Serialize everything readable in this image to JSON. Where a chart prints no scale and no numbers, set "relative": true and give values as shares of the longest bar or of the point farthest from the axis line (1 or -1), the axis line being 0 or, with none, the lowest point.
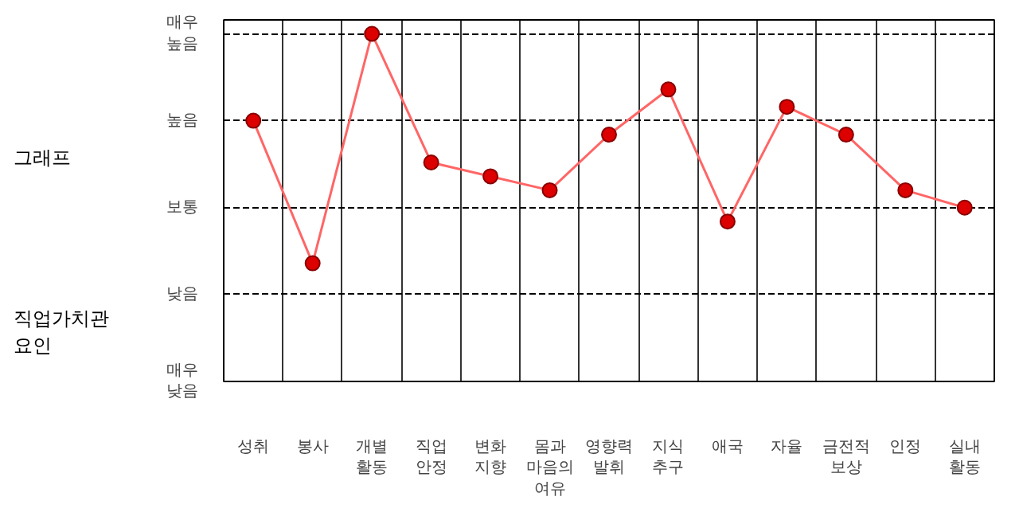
{
  "chart_data": {
    "type": "line",
    "relative": true,
    "categories": [
      "성취",
      "봉사",
      "개별 활동",
      "직업 안정",
      "변화 지향",
      "몸과 마음의 여유",
      "영향력 발휘",
      "지식 추구",
      "애국",
      "자율",
      "금전적 보상",
      "인정",
      "실내 활동"
    ],
    "series": [
      {
        "color": "#ff6666",
        "values": [
          0.75,
          0.34,
          1.0,
          0.63,
          0.59,
          0.55,
          0.71,
          0.84,
          0.46,
          0.79,
          0.71,
          0.55,
          0.5
        ]
      }
    ],
    "annotations": [
      "그래프",
      "직업가치관 요인",
      "매우 낮음",
      "낮음",
      "보통",
      "높음",
      "매우 높음"
    ],
    "grid": true,
    "marker": "circle",
    "line_style": "solid"
  }
}
